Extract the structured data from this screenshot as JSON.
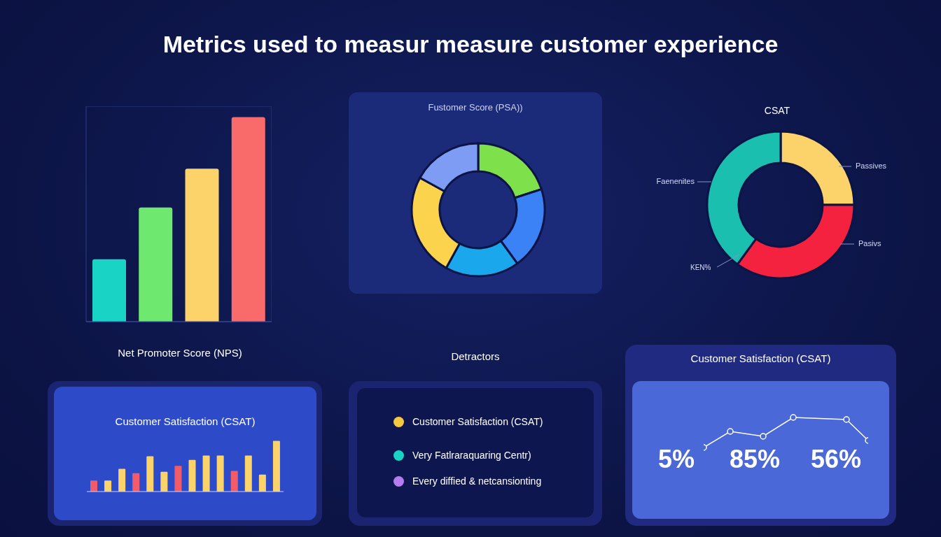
{
  "title": "Metrics used to measur measure customer experience",
  "chart_data": [
    {
      "type": "bar",
      "title": "Net Promoter Score (NPS)",
      "categories": [
        null,
        null,
        null,
        null
      ],
      "values": [
        29,
        53,
        71,
        95
      ],
      "colors": [
        "#19d3c5",
        "#6ee86e",
        "#fcd26a",
        "#f96b6b"
      ],
      "ylim": [
        0,
        100
      ],
      "yticks": [
        0,
        20,
        40,
        60,
        80,
        100
      ],
      "grid": true,
      "tick_labels": false
    },
    {
      "type": "pie",
      "title": "Fustomer Score (PSA))",
      "values": [
        20,
        20,
        18,
        25,
        17
      ],
      "colors": [
        "#7ee04a",
        "#3b82f6",
        "#1aa7ec",
        "#fcd34d",
        "#7f9cf5"
      ]
    },
    {
      "type": "pie",
      "title": "CSAT",
      "categories": [
        "Passives",
        "Pasivs",
        "Faenenites"
      ],
      "values": [
        25,
        35,
        40
      ],
      "colors": [
        "#fcd26a",
        "#f5223f",
        "#1bbfb0"
      ],
      "annotations": [
        "KEN%"
      ]
    },
    {
      "type": "bar",
      "title": "Customer Satisfaction (CSAT)",
      "categories": [
        null,
        null,
        null,
        null,
        null,
        null,
        null,
        null,
        null,
        null,
        null,
        null,
        null,
        null
      ],
      "values": [
        15,
        15,
        31,
        25,
        48,
        27,
        35,
        43,
        49,
        49,
        28,
        49,
        23,
        69
      ],
      "colors": [
        "#f25c6a",
        "#fcd26a",
        "#fcd26a",
        "#f25c6a",
        "#fcd26a",
        "#fcd26a",
        "#f25c6a",
        "#fcd26a",
        "#fcd26a",
        "#fcd26a",
        "#f25c6a",
        "#fcd26a",
        "#fcd26a",
        "#fcd26a"
      ],
      "ylim": [
        0,
        80
      ],
      "yticks": [
        0,
        40,
        80
      ],
      "grid": false,
      "tick_labels": false
    },
    {
      "type": "line",
      "title": "Customer Satisfaction (CSAT)",
      "x": [
        0,
        38,
        85,
        128,
        204,
        235
      ],
      "values": [
        20,
        43,
        36,
        63,
        60,
        30
      ],
      "color": "#ffffff",
      "marker": "circle",
      "xlim": [
        0,
        235
      ],
      "xticks": [
        0,
        235
      ],
      "ylim": [
        0,
        80
      ],
      "yticks": [
        0,
        80
      ],
      "tick_labels": false,
      "annotations": [
        "5%",
        "85%",
        "56%"
      ]
    }
  ],
  "legend_panel": {
    "title": "Detractors",
    "items": [
      {
        "label": "Customer Satisfaction (CSAT)",
        "color": "#f5c842"
      },
      {
        "label": "Very Fatlraraquaring Centr)",
        "color": "#19d3c5"
      },
      {
        "label": "Every diffied & netcansionting",
        "color": "#b57cf0"
      }
    ]
  }
}
